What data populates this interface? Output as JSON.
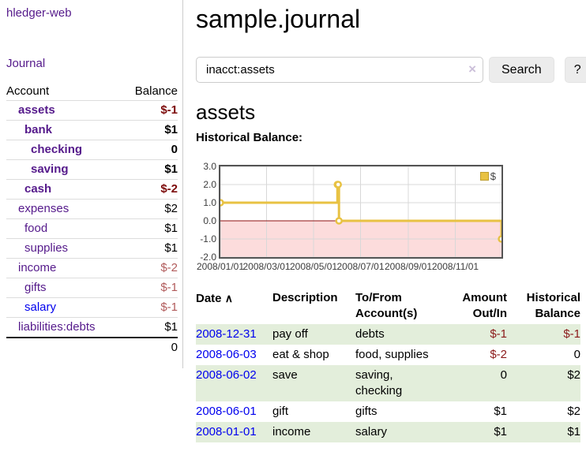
{
  "sidebar": {
    "brand": "hledger-web",
    "journal_label": "Journal",
    "accounts_table": {
      "headers": {
        "account": "Account",
        "balance": "Balance"
      },
      "rows": [
        {
          "name": "assets",
          "balance": "$-1",
          "level": 1,
          "bold": true,
          "negative": true
        },
        {
          "name": "bank",
          "balance": "$1",
          "level": 2,
          "bold": true,
          "negative": false
        },
        {
          "name": "checking",
          "balance": "0",
          "level": 3,
          "bold": true,
          "negative": false
        },
        {
          "name": "saving",
          "balance": "$1",
          "level": 3,
          "bold": true,
          "negative": false
        },
        {
          "name": "cash",
          "balance": "$-2",
          "level": 2,
          "bold": true,
          "negative": true
        },
        {
          "name": "expenses",
          "balance": "$2",
          "level": 1,
          "bold": false,
          "negative": false
        },
        {
          "name": "food",
          "balance": "$1",
          "level": 2,
          "bold": false,
          "negative": false
        },
        {
          "name": "supplies",
          "balance": "$1",
          "level": 2,
          "bold": false,
          "negative": false
        },
        {
          "name": "income",
          "balance": "$-2",
          "level": 1,
          "bold": false,
          "negative": true
        },
        {
          "name": "gifts",
          "balance": "$-1",
          "level": 2,
          "bold": false,
          "negative": true
        },
        {
          "name": "salary",
          "balance": "$-1",
          "level": 2,
          "bold": false,
          "negative": true,
          "unvisited": true
        },
        {
          "name": "liabilities:debts",
          "balance": "$1",
          "level": 1,
          "bold": false,
          "negative": false
        }
      ],
      "total": "0"
    }
  },
  "header": {
    "title": "sample.journal"
  },
  "search": {
    "value": "inacct:assets",
    "clear_icon": "×",
    "button_label": "Search",
    "help_label": "?"
  },
  "account_page": {
    "title": "assets",
    "chart_label": "Historical Balance:"
  },
  "chart_data": {
    "type": "line",
    "step": true,
    "title": "Historical Balance:",
    "legend": "$",
    "legend_position": "top-right",
    "grid": true,
    "x_range": [
      "2008-01-01",
      "2008-12-31"
    ],
    "ylim": [
      -2,
      3
    ],
    "series": [
      {
        "name": "$",
        "color": "#e8c243",
        "points": [
          [
            "2008-01-01",
            1
          ],
          [
            "2008-06-01",
            2
          ],
          [
            "2008-06-02",
            2
          ],
          [
            "2008-06-03",
            0
          ],
          [
            "2008-12-31",
            -1
          ]
        ]
      }
    ],
    "y_ticks": [
      {
        "value": 3,
        "label": "3.0"
      },
      {
        "value": 2,
        "label": "2.0"
      },
      {
        "value": 1,
        "label": "1.0"
      },
      {
        "value": 0,
        "label": "0.0"
      },
      {
        "value": -1,
        "label": "-1.0"
      },
      {
        "value": -2,
        "label": "-2.0"
      }
    ],
    "x_ticks": [
      {
        "date": "2008-01-01",
        "label": "2008/01/01"
      },
      {
        "date": "2008-03-01",
        "label": "2008/03/01"
      },
      {
        "date": "2008-05-01",
        "label": "2008/05/01"
      },
      {
        "date": "2008-07-01",
        "label": "2008/07/01"
      },
      {
        "date": "2008-09-01",
        "label": "2008/09/01"
      },
      {
        "date": "2008-11-01",
        "label": "2008/11/01"
      }
    ],
    "negative_region_color": "#fcdcdc",
    "zero_line_color": "#8e1212",
    "gridline_color": "#d8d8d8"
  },
  "register": {
    "headers": {
      "date": "Date",
      "description": "Description",
      "accounts": "To/From Account(s)",
      "amount": "Amount Out/In",
      "balance": "Historical Balance"
    },
    "sort_asc_icon": "∧",
    "rows": [
      {
        "date": "2008-12-31",
        "description": "pay off",
        "accounts": "debts",
        "amount": "$-1",
        "balance": "$-1"
      },
      {
        "date": "2008-06-03",
        "description": "eat & shop",
        "accounts": "food, supplies",
        "amount": "$-2",
        "balance": "0"
      },
      {
        "date": "2008-06-02",
        "description": "save",
        "accounts": "saving, checking",
        "amount": "0",
        "balance": "$2"
      },
      {
        "date": "2008-06-01",
        "description": "gift",
        "accounts": "gifts",
        "amount": "$1",
        "balance": "$2"
      },
      {
        "date": "2008-01-01",
        "description": "income",
        "accounts": "salary",
        "amount": "$1",
        "balance": "$1"
      }
    ]
  },
  "colors": {
    "link_purple": "#551a8b",
    "link_blue": "#0000ee",
    "negative_strong": "#7c0a0a",
    "negative_soft": "#b15b5b",
    "negative_register": "#8b1a1a",
    "row_green": "#e3eedb",
    "chart_gold": "#e8c243",
    "chart_pink": "#fcdcdc",
    "button_gray": "#ececec"
  }
}
